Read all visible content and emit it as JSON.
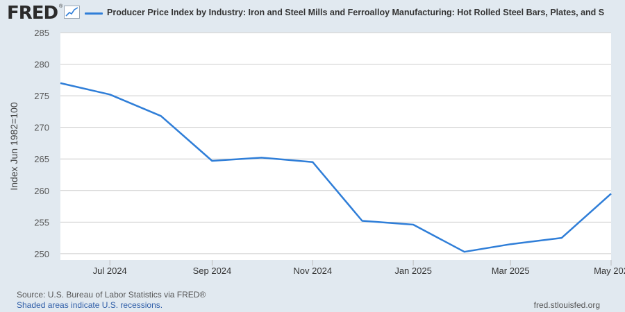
{
  "header": {
    "logo": "FRED",
    "logo_mark": "®",
    "legend_label": "Producer Price Index by Industry: Iron and Steel Mills and Ferroalloy Manufacturing: Hot Rolled Steel Bars, Plates, and S"
  },
  "footer": {
    "source": "Source: U.S. Bureau of Labor Statistics via FRED®",
    "recessions": "Shaded areas indicate U.S. recessions.",
    "site": "fred.stlouisfed.org"
  },
  "colors": {
    "series": "#2f7ed8",
    "background": "#e1e9f0",
    "plot": "#ffffff",
    "grid": "#cccccc"
  },
  "chart_data": {
    "type": "line",
    "ylabel": "Index Jun 1982=100",
    "ylim": [
      249,
      285
    ],
    "yticks": [
      250,
      255,
      260,
      265,
      270,
      275,
      280,
      285
    ],
    "xticks": [
      {
        "date": "2024-07",
        "label": "Jul 2024"
      },
      {
        "date": "2024-09",
        "label": "Sep 2024"
      },
      {
        "date": "2024-11",
        "label": "Nov 2024"
      },
      {
        "date": "2025-01",
        "label": "Jan 2025"
      },
      {
        "date": "2025-03",
        "label": "Mar 2025"
      },
      {
        "date": "2025-05",
        "label": "May 202"
      }
    ],
    "grid": true,
    "series": [
      {
        "x": [
          "2024-06",
          "2024-07",
          "2024-08",
          "2024-09",
          "2024-10",
          "2024-11",
          "2024-12",
          "2025-01",
          "2025-02",
          "2025-03",
          "2025-04",
          "2025-05"
        ],
        "values": [
          277.0,
          275.2,
          271.8,
          264.7,
          265.2,
          264.5,
          255.2,
          254.6,
          250.3,
          251.5,
          252.5,
          259.5
        ]
      }
    ]
  }
}
